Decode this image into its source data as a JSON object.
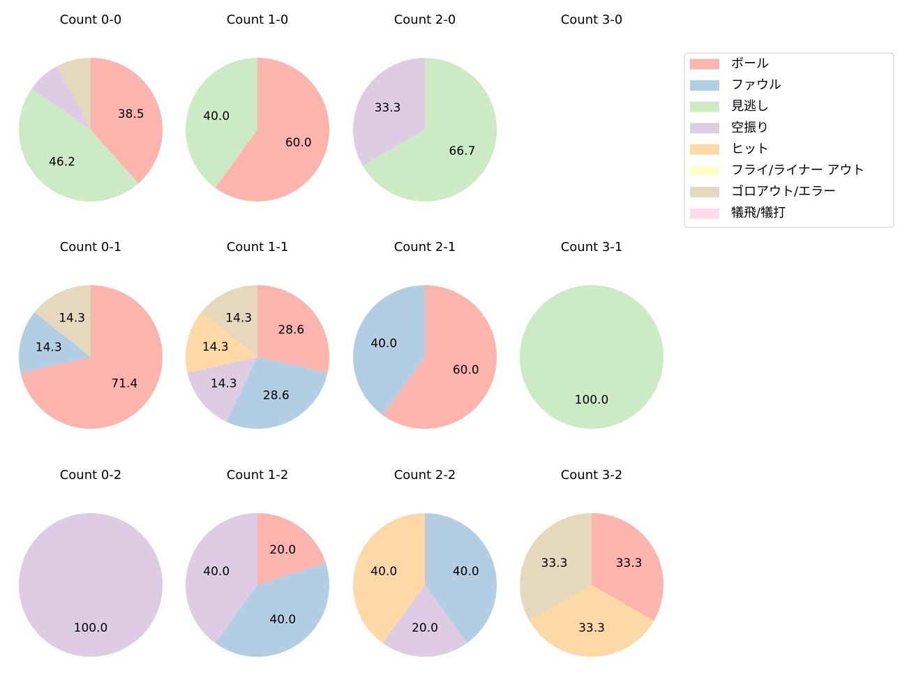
{
  "chart_data": [
    {
      "type": "pie",
      "title": "Count 0-0",
      "categories": [
        "ボール",
        "見逃し",
        "空振り",
        "ゴロアウト/エラー"
      ],
      "values": [
        38.5,
        46.2,
        7.7,
        7.7
      ],
      "value_labels": [
        "38.5",
        "46.2",
        null,
        null
      ],
      "colors": [
        "#fbb4ae",
        "#ccebc5",
        "#decbe4",
        "#e5d8bd"
      ]
    },
    {
      "type": "pie",
      "title": "Count 1-0",
      "categories": [
        "ボール",
        "見逃し"
      ],
      "values": [
        60,
        40
      ],
      "value_labels": [
        "60.0",
        "40.0"
      ],
      "colors": [
        "#fbb4ae",
        "#ccebc5"
      ]
    },
    {
      "type": "pie",
      "title": "Count 2-0",
      "categories": [
        "見逃し",
        "空振り"
      ],
      "values": [
        66.7,
        33.3
      ],
      "value_labels": [
        "66.7",
        "33.3"
      ],
      "colors": [
        "#ccebc5",
        "#decbe4"
      ]
    },
    {
      "type": "pie",
      "title": "Count 3-0",
      "categories": [],
      "values": [],
      "value_labels": [],
      "colors": []
    },
    {
      "type": "pie",
      "title": "Count 0-1",
      "categories": [
        "ボール",
        "ファウル",
        "ゴロアウト/エラー"
      ],
      "values": [
        71.4,
        14.3,
        14.3
      ],
      "value_labels": [
        "71.4",
        "14.3",
        "14.3"
      ],
      "colors": [
        "#fbb4ae",
        "#b3cde3",
        "#e5d8bd"
      ]
    },
    {
      "type": "pie",
      "title": "Count 1-1",
      "categories": [
        "ボール",
        "ファウル",
        "空振り",
        "ヒット",
        "ゴロアウト/エラー"
      ],
      "values": [
        28.6,
        28.6,
        14.3,
        14.3,
        14.3
      ],
      "value_labels": [
        "28.6",
        "28.6",
        "14.3",
        "14.3",
        "14.3"
      ],
      "colors": [
        "#fbb4ae",
        "#b3cde3",
        "#decbe4",
        "#fed9a6",
        "#e5d8bd"
      ]
    },
    {
      "type": "pie",
      "title": "Count 2-1",
      "categories": [
        "ボール",
        "ファウル"
      ],
      "values": [
        60,
        40
      ],
      "value_labels": [
        "60.0",
        "40.0"
      ],
      "colors": [
        "#fbb4ae",
        "#b3cde3"
      ]
    },
    {
      "type": "pie",
      "title": "Count 3-1",
      "categories": [
        "見逃し"
      ],
      "values": [
        100
      ],
      "value_labels": [
        "100.0"
      ],
      "colors": [
        "#ccebc5"
      ]
    },
    {
      "type": "pie",
      "title": "Count 0-2",
      "categories": [
        "空振り"
      ],
      "values": [
        100
      ],
      "value_labels": [
        "100.0"
      ],
      "colors": [
        "#decbe4"
      ]
    },
    {
      "type": "pie",
      "title": "Count 1-2",
      "categories": [
        "ボール",
        "ファウル",
        "空振り"
      ],
      "values": [
        20,
        40,
        40
      ],
      "value_labels": [
        "20.0",
        "40.0",
        "40.0"
      ],
      "colors": [
        "#fbb4ae",
        "#b3cde3",
        "#decbe4"
      ]
    },
    {
      "type": "pie",
      "title": "Count 2-2",
      "categories": [
        "ファウル",
        "空振り",
        "ヒット"
      ],
      "values": [
        40,
        20,
        40
      ],
      "value_labels": [
        "40.0",
        "20.0",
        "40.0"
      ],
      "colors": [
        "#b3cde3",
        "#decbe4",
        "#fed9a6"
      ]
    },
    {
      "type": "pie",
      "title": "Count 3-2",
      "categories": [
        "ボール",
        "ヒット",
        "ゴロアウト/エラー"
      ],
      "values": [
        33.3,
        33.3,
        33.3
      ],
      "value_labels": [
        "33.3",
        "33.3",
        "33.3"
      ],
      "colors": [
        "#fbb4ae",
        "#fed9a6",
        "#e5d8bd"
      ]
    }
  ],
  "legend": {
    "labels": [
      "ボール",
      "ファウル",
      "見逃し",
      "空振り",
      "ヒット",
      "フライ/ライナー アウト",
      "ゴロアウト/エラー",
      "犠飛/犠打"
    ],
    "colors": [
      "#fbb4ae",
      "#b3cde3",
      "#ccebc5",
      "#decbe4",
      "#fed9a6",
      "#ffffcc",
      "#e5d8bd",
      "#fddaec"
    ]
  }
}
